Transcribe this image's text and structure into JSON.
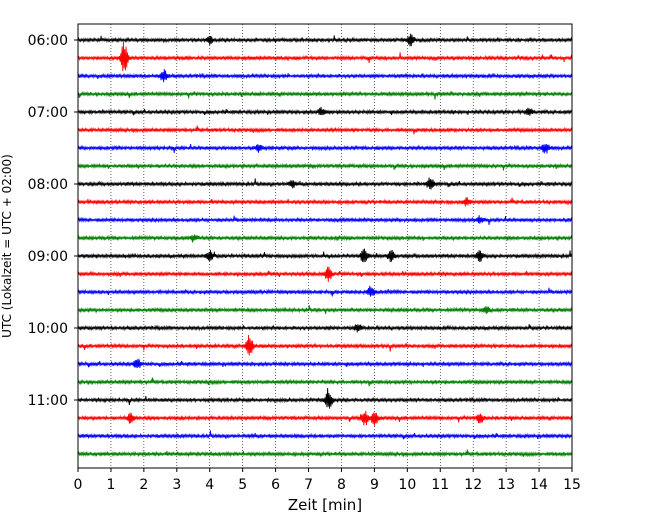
{
  "chart_data": {
    "type": "line",
    "subtype": "helicorder",
    "title": "",
    "xlabel": "Zeit  [min]",
    "ylabel": "UTC (Lokalzeit = UTC + 02:00)",
    "xlim": [
      0,
      15
    ],
    "x_ticks": [
      "0",
      "1",
      "2",
      "3",
      "4",
      "5",
      "6",
      "7",
      "8",
      "9",
      "10",
      "11",
      "12",
      "13",
      "14",
      "15"
    ],
    "y_tick_labels": [
      "06:00",
      "07:00",
      "08:00",
      "09:00",
      "10:00",
      "11:00"
    ],
    "rows_per_hour": 4,
    "row_count": 24,
    "row_interval_min": 15,
    "grid": "vertical dotted",
    "colors": [
      "#000000",
      "#ff0000",
      "#0000ff",
      "#008000"
    ],
    "events": [
      {
        "row": 0,
        "minute": 4.0,
        "amp": 0.2
      },
      {
        "row": 0,
        "minute": 10.1,
        "amp": 0.3
      },
      {
        "row": 1,
        "minute": 1.4,
        "amp": 0.9
      },
      {
        "row": 2,
        "minute": 2.6,
        "amp": 0.35
      },
      {
        "row": 4,
        "minute": 7.4,
        "amp": 0.22
      },
      {
        "row": 4,
        "minute": 13.7,
        "amp": 0.2
      },
      {
        "row": 6,
        "minute": 5.5,
        "amp": 0.2
      },
      {
        "row": 6,
        "minute": 14.2,
        "amp": 0.3
      },
      {
        "row": 8,
        "minute": 10.7,
        "amp": 0.35
      },
      {
        "row": 8,
        "minute": 6.5,
        "amp": 0.2
      },
      {
        "row": 9,
        "minute": 11.8,
        "amp": 0.2
      },
      {
        "row": 10,
        "minute": 12.2,
        "amp": 0.2
      },
      {
        "row": 11,
        "minute": 3.5,
        "amp": 0.2
      },
      {
        "row": 12,
        "minute": 4.0,
        "amp": 0.3
      },
      {
        "row": 12,
        "minute": 8.7,
        "amp": 0.45
      },
      {
        "row": 12,
        "minute": 9.5,
        "amp": 0.3
      },
      {
        "row": 12,
        "minute": 12.2,
        "amp": 0.3
      },
      {
        "row": 13,
        "minute": 7.6,
        "amp": 0.45
      },
      {
        "row": 14,
        "minute": 8.9,
        "amp": 0.3
      },
      {
        "row": 15,
        "minute": 12.4,
        "amp": 0.2
      },
      {
        "row": 16,
        "minute": 8.5,
        "amp": 0.2
      },
      {
        "row": 17,
        "minute": 5.2,
        "amp": 0.6
      },
      {
        "row": 18,
        "minute": 1.8,
        "amp": 0.3
      },
      {
        "row": 20,
        "minute": 7.6,
        "amp": 0.65
      },
      {
        "row": 21,
        "minute": 1.6,
        "amp": 0.3
      },
      {
        "row": 21,
        "minute": 8.7,
        "amp": 0.45
      },
      {
        "row": 21,
        "minute": 9.0,
        "amp": 0.45
      },
      {
        "row": 21,
        "minute": 12.2,
        "amp": 0.3
      }
    ]
  }
}
